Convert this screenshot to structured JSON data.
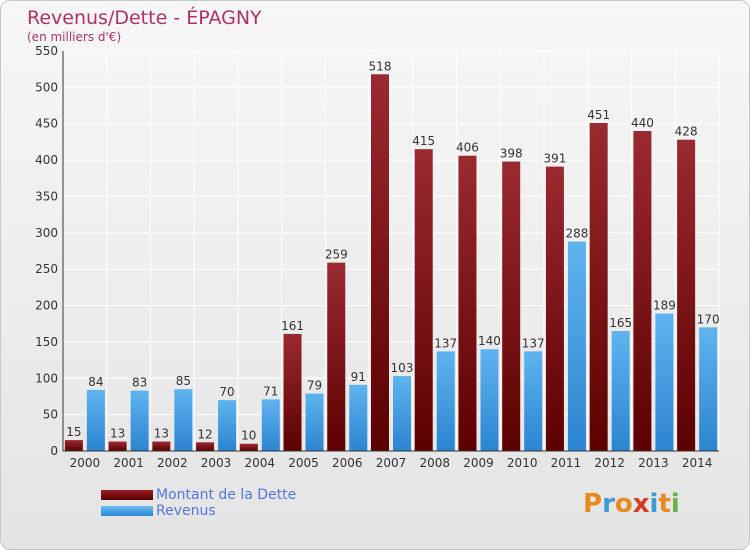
{
  "title": "Revenus/Dette - ÉPAGNY",
  "subtitle": "(en milliers d'€)",
  "logo_text": "Proxiti",
  "legend": [
    {
      "label": "Montant de la Dette",
      "color": "#7a1416"
    },
    {
      "label": "Revenus",
      "color": "#4aa3e8"
    }
  ],
  "chart_data": {
    "type": "bar",
    "categories": [
      "2000",
      "2001",
      "2002",
      "2003",
      "2004",
      "2005",
      "2006",
      "2007",
      "2008",
      "2009",
      "2010",
      "2011",
      "2012",
      "2013",
      "2014"
    ],
    "series": [
      {
        "name": "Montant de la Dette",
        "color": "#7a1416",
        "values": [
          15,
          13,
          13,
          12,
          10,
          161,
          259,
          518,
          415,
          406,
          398,
          391,
          451,
          440,
          428
        ]
      },
      {
        "name": "Revenus",
        "color": "#4aa3e8",
        "values": [
          84,
          83,
          85,
          70,
          71,
          79,
          91,
          103,
          137,
          140,
          137,
          288,
          165,
          189,
          170
        ]
      }
    ],
    "ylim": [
      0,
      550
    ],
    "yticks": [
      0,
      50,
      100,
      150,
      200,
      250,
      300,
      350,
      400,
      450,
      500,
      550
    ],
    "grid": true,
    "legend_position": "bottom-left"
  }
}
